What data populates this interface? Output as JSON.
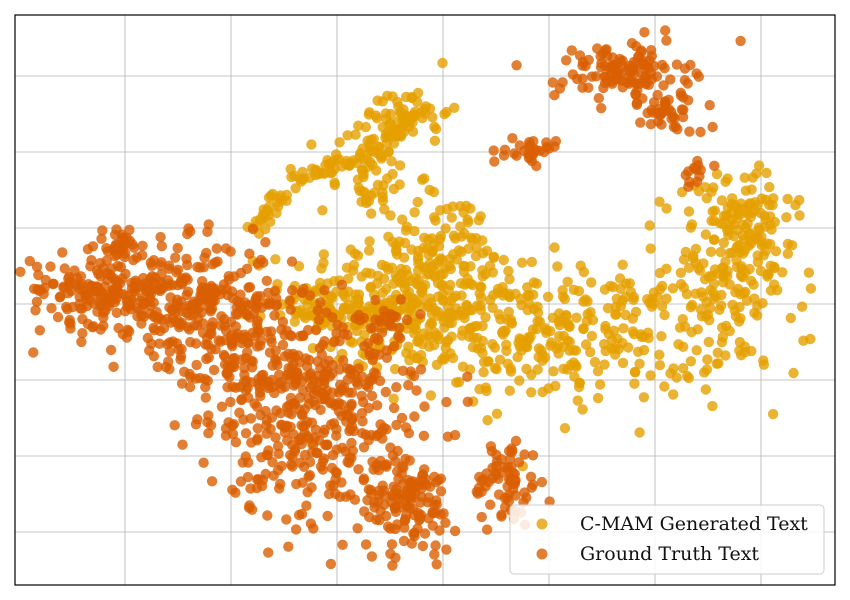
{
  "chart_data": {
    "type": "scatter",
    "title": "",
    "xlabel": "",
    "ylabel": "",
    "xlim": [
      0,
      100
    ],
    "ylim": [
      0,
      100
    ],
    "grid": true,
    "legend_position": "bottom-right",
    "series": [
      {
        "name": "C-MAM Generated Text",
        "color": "#E5A000",
        "clusters": [
          {
            "cx": 47,
            "cy": 50,
            "sx": 7,
            "sy": 6,
            "n": 320
          },
          {
            "cx": 67,
            "cy": 44,
            "sx": 10,
            "sy": 6,
            "n": 320
          },
          {
            "cx": 87,
            "cy": 54,
            "sx": 4,
            "sy": 8,
            "n": 160
          },
          {
            "cx": 89,
            "cy": 65,
            "sx": 3,
            "sy": 4,
            "n": 70
          },
          {
            "cx": 48,
            "cy": 83,
            "sx": 2.5,
            "sy": 2.5,
            "n": 50
          },
          {
            "cx": 43,
            "cy": 72,
            "sx": 3,
            "sy": 4,
            "n": 60
          },
          {
            "cx": 39,
            "cy": 48,
            "sx": 4,
            "sy": 1.5,
            "n": 45
          },
          {
            "cx": 53,
            "cy": 61,
            "sx": 4,
            "sy": 4,
            "n": 50
          }
        ],
        "arcs": [
          {
            "x0": 29,
            "y0": 62,
            "x1": 34,
            "y1": 71,
            "n": 30
          },
          {
            "x0": 34,
            "y0": 71,
            "x1": 44,
            "y1": 76,
            "n": 40
          },
          {
            "x0": 44,
            "y0": 76,
            "x1": 49,
            "y1": 83,
            "n": 30
          }
        ]
      },
      {
        "name": "Ground Truth Text",
        "color": "#D95F02",
        "clusters": [
          {
            "cx": 10,
            "cy": 52,
            "sx": 4,
            "sy": 3,
            "n": 120
          },
          {
            "cx": 20,
            "cy": 50,
            "sx": 6,
            "sy": 5,
            "n": 260
          },
          {
            "cx": 30,
            "cy": 40,
            "sx": 6,
            "sy": 7,
            "n": 260
          },
          {
            "cx": 38,
            "cy": 24,
            "sx": 6,
            "sy": 7,
            "n": 220
          },
          {
            "cx": 48,
            "cy": 14,
            "sx": 3,
            "sy": 4,
            "n": 120
          },
          {
            "cx": 13,
            "cy": 60,
            "sx": 1.5,
            "sy": 1.5,
            "n": 30
          },
          {
            "cx": 60,
            "cy": 18,
            "sx": 2,
            "sy": 4,
            "n": 70
          },
          {
            "cx": 74,
            "cy": 90,
            "sx": 4,
            "sy": 2.5,
            "n": 120
          },
          {
            "cx": 80,
            "cy": 83,
            "sx": 2,
            "sy": 2,
            "n": 40
          },
          {
            "cx": 63,
            "cy": 76,
            "sx": 1.5,
            "sy": 1,
            "n": 30
          },
          {
            "cx": 83,
            "cy": 73,
            "sx": 1,
            "sy": 1.5,
            "n": 12
          },
          {
            "cx": 40,
            "cy": 36,
            "sx": 5,
            "sy": 3,
            "n": 60
          },
          {
            "cx": 45,
            "cy": 46,
            "sx": 2,
            "sy": 2,
            "n": 30
          }
        ],
        "arcs": []
      }
    ]
  }
}
